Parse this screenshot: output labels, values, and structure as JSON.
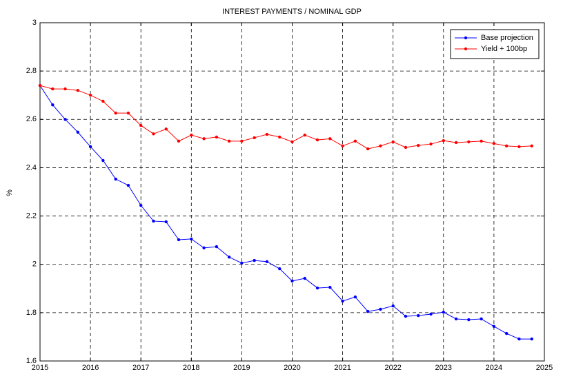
{
  "chart_data": {
    "type": "line",
    "title": "INTEREST PAYMENTS / NOMINAL GDP",
    "y_label": "%",
    "x": [
      2015,
      2015.25,
      2015.5,
      2015.75,
      2016,
      2016.25,
      2016.5,
      2016.75,
      2017,
      2017.25,
      2017.5,
      2017.75,
      2018,
      2018.25,
      2018.5,
      2018.75,
      2019,
      2019.25,
      2019.5,
      2019.75,
      2020,
      2020.25,
      2020.5,
      2020.75,
      2021,
      2021.25,
      2021.5,
      2021.75,
      2022,
      2022.25,
      2022.5,
      2022.75,
      2023,
      2023.25,
      2023.5,
      2023.75,
      2024,
      2024.25,
      2024.5,
      2024.75
    ],
    "series": [
      {
        "name": "Base projection",
        "color": "#0000ff",
        "values": [
          2.74,
          2.66,
          2.6,
          2.547,
          2.487,
          2.43,
          2.353,
          2.327,
          2.244,
          2.179,
          2.176,
          2.102,
          2.105,
          2.068,
          2.073,
          2.03,
          2.005,
          2.016,
          2.011,
          1.982,
          1.931,
          1.942,
          1.902,
          1.905,
          1.848,
          1.865,
          1.805,
          1.814,
          1.828,
          1.785,
          1.788,
          1.794,
          1.802,
          1.774,
          1.771,
          1.774,
          1.743,
          1.714,
          1.691,
          1.691
        ]
      },
      {
        "name": "Yield + 100bp",
        "color": "#ff0000",
        "values": [
          2.74,
          2.726,
          2.726,
          2.72,
          2.7,
          2.675,
          2.626,
          2.626,
          2.575,
          2.54,
          2.56,
          2.51,
          2.535,
          2.52,
          2.527,
          2.51,
          2.51,
          2.524,
          2.538,
          2.527,
          2.507,
          2.535,
          2.515,
          2.52,
          2.49,
          2.51,
          2.478,
          2.49,
          2.507,
          2.484,
          2.492,
          2.498,
          2.512,
          2.504,
          2.507,
          2.51,
          2.5,
          2.49,
          2.487,
          2.49
        ]
      }
    ],
    "xlim": [
      2015,
      2025
    ],
    "xticks": [
      2015,
      2016,
      2017,
      2018,
      2019,
      2020,
      2021,
      2022,
      2023,
      2024,
      2025
    ],
    "ylim": [
      1.6,
      3
    ],
    "yticks": [
      1.6,
      1.8,
      2,
      2.2,
      2.4,
      2.6,
      2.8,
      3
    ],
    "grid": true,
    "legend": "northeast"
  }
}
